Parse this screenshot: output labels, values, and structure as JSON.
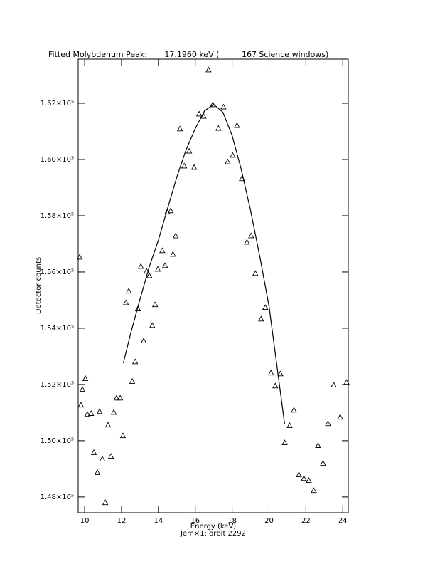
{
  "chart_data": {
    "type": "scatter",
    "title": "Fitted Molybdenum Peak:       17.1960 keV (         167 Science windows)",
    "x_label": "Energy (keV)",
    "subtitle": "Jem×1: orbit 2292",
    "y_label": "Detector counts",
    "xlim": [
      9.65,
      24.3
    ],
    "ylim": [
      147440,
      163570
    ],
    "xticks": [
      10,
      12,
      14,
      16,
      18,
      20,
      22,
      24
    ],
    "yticks": [
      {
        "value": 148000,
        "label": "1.48×10⁵"
      },
      {
        "value": 150000,
        "label": "1.50×10⁵"
      },
      {
        "value": 152000,
        "label": "1.52×10⁵"
      },
      {
        "value": 154000,
        "label": "1.54×10⁵"
      },
      {
        "value": 156000,
        "label": "1.56×10⁵"
      },
      {
        "value": 158000,
        "label": "1.58×10⁵"
      },
      {
        "value": 160000,
        "label": "1.60×10⁵"
      },
      {
        "value": 162000,
        "label": "1.62×10⁵"
      }
    ],
    "series": [
      {
        "marker": "triangle",
        "color": "#000000",
        "x": [
          9.73,
          9.8,
          9.88,
          10.04,
          10.15,
          10.35,
          10.5,
          10.69,
          10.81,
          10.96,
          11.12,
          11.27,
          11.43,
          11.58,
          11.73,
          11.93,
          12.08,
          12.24,
          12.39,
          12.58,
          12.74,
          12.89,
          13.05,
          13.2,
          13.36,
          13.51,
          13.67,
          13.82,
          13.97,
          14.21,
          14.36,
          14.48,
          14.67,
          14.79,
          14.94,
          15.17,
          15.4,
          15.67,
          15.94,
          16.21,
          16.45,
          16.72,
          16.95,
          17.26,
          17.53,
          17.76,
          18.03,
          18.26,
          18.53,
          18.8,
          19.03,
          19.26,
          19.57,
          19.8,
          20.11,
          20.34,
          20.62,
          20.85,
          21.12,
          21.35,
          21.62,
          21.89,
          22.16,
          22.43,
          22.66,
          22.93,
          23.2,
          23.51,
          23.86,
          24.21
        ],
        "values": [
          156520,
          151260,
          151820,
          152200,
          150930,
          150960,
          149570,
          148860,
          151030,
          149340,
          147790,
          150550,
          149440,
          151000,
          151510,
          151510,
          150170,
          154900,
          155310,
          152100,
          152800,
          154680,
          156190,
          153540,
          156020,
          155860,
          154090,
          154830,
          156090,
          156750,
          156220,
          158120,
          158170,
          156620,
          157280,
          161080,
          159760,
          160290,
          159710,
          161610,
          161530,
          163180,
          161940,
          161100,
          161860,
          159910,
          160140,
          161200,
          159310,
          157050,
          157280,
          155940,
          154320,
          154730,
          152400,
          151940,
          152370,
          149920,
          150530,
          151080,
          148780,
          148650,
          148580,
          148220,
          149820,
          149190,
          150600,
          151970,
          150830,
          152070
        ]
      },
      {
        "marker": "line",
        "color": "#000000",
        "x": [
          12.1,
          12.5,
          13,
          13.5,
          14,
          14.5,
          15,
          15.5,
          16,
          16.5,
          17,
          17.5,
          18,
          18.5,
          19,
          19.5,
          20,
          20.85
        ],
        "values": [
          152760,
          153820,
          155030,
          156170,
          157130,
          158270,
          159380,
          160340,
          161100,
          161730,
          161960,
          161680,
          160850,
          159630,
          158190,
          156550,
          154780,
          150580
        ]
      }
    ]
  }
}
